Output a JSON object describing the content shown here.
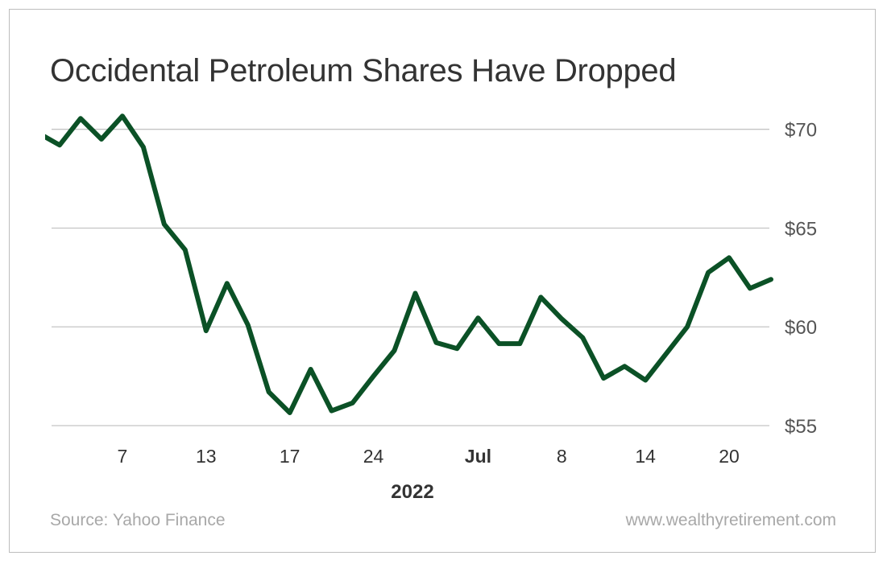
{
  "chart_data": {
    "type": "line",
    "title": "Occidental Petroleum Shares Have Dropped",
    "xlabel": "2022",
    "ylabel": "",
    "ylim": [
      55,
      70
    ],
    "yticks": [
      55,
      60,
      65,
      70
    ],
    "ytick_labels": [
      "$55",
      "$60",
      "$65",
      "$70"
    ],
    "y_axis_position": "right",
    "grid": true,
    "line_color": "#0b5126",
    "x": [
      "2022-06-01",
      "2022-06-02",
      "2022-06-03",
      "2022-06-06",
      "2022-06-07",
      "2022-06-08",
      "2022-06-09",
      "2022-06-10",
      "2022-06-13",
      "2022-06-14",
      "2022-06-15",
      "2022-06-16",
      "2022-06-17",
      "2022-06-21",
      "2022-06-22",
      "2022-06-23",
      "2022-06-24",
      "2022-06-27",
      "2022-06-28",
      "2022-06-29",
      "2022-06-30",
      "2022-07-01",
      "2022-07-05",
      "2022-07-06",
      "2022-07-07",
      "2022-07-08",
      "2022-07-11",
      "2022-07-12",
      "2022-07-13",
      "2022-07-14",
      "2022-07-15",
      "2022-07-18",
      "2022-07-19",
      "2022-07-20",
      "2022-07-21",
      "2022-07-22"
    ],
    "values": [
      69.8,
      69.2,
      70.55,
      69.5,
      70.67,
      69.1,
      65.2,
      63.9,
      59.8,
      62.2,
      60.1,
      56.7,
      55.65,
      57.85,
      55.75,
      56.15,
      57.5,
      58.8,
      61.7,
      59.2,
      58.9,
      60.45,
      59.15,
      59.15,
      61.5,
      60.4,
      59.45,
      57.4,
      58.0,
      57.3,
      58.65,
      60.0,
      62.75,
      63.5,
      61.95,
      62.4
    ],
    "xtick_labels": [
      {
        "label": "7",
        "date": "2022-06-07",
        "bold": false
      },
      {
        "label": "13",
        "date": "2022-06-13",
        "bold": false
      },
      {
        "label": "17",
        "date": "2022-06-17",
        "bold": false
      },
      {
        "label": "24",
        "date": "2022-06-24",
        "bold": false
      },
      {
        "label": "Jul",
        "date": "2022-07-01",
        "bold": true
      },
      {
        "label": "8",
        "date": "2022-07-08",
        "bold": false
      },
      {
        "label": "14",
        "date": "2022-07-14",
        "bold": false
      },
      {
        "label": "20",
        "date": "2022-07-20",
        "bold": false
      }
    ]
  },
  "footer": {
    "source": "Source: Yahoo Finance",
    "website": "www.wealthyretirement.com"
  }
}
